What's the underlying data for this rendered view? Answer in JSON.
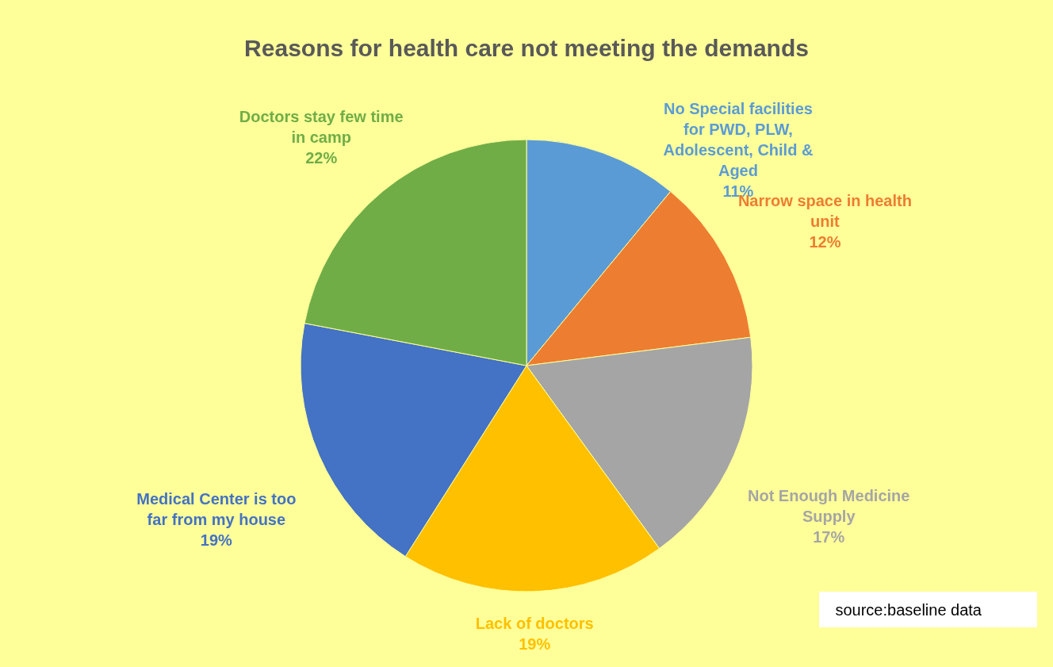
{
  "chart_data": {
    "type": "pie",
    "title": "Reasons for health care not meeting the demands",
    "categories": [
      "No Special facilities for PWD, PLW, Adolescent, Child & Aged",
      "Narrow space in health unit",
      "Not Enough Medicine Supply",
      "Lack of doctors",
      "Medical Center is too far from my house",
      "Doctors stay few time in camp"
    ],
    "values": [
      11,
      12,
      17,
      19,
      19,
      22
    ],
    "value_labels": [
      "11%",
      "12%",
      "17%",
      "19%",
      "19%",
      "22%"
    ],
    "colors": [
      "#5b9bd5",
      "#ed7d31",
      "#a5a5a5",
      "#ffc000",
      "#4472c4",
      "#70ad47"
    ],
    "legend": false,
    "annotations": [
      "source:baseline data"
    ]
  }
}
